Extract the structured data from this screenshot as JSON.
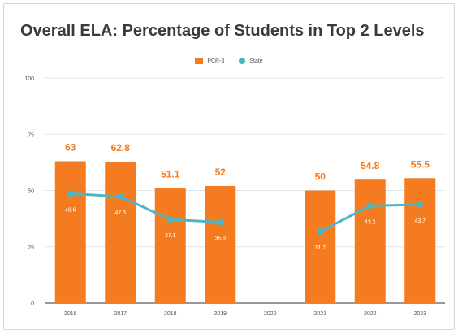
{
  "chart_data": {
    "type": "bar",
    "title": "Overall ELA: Percentage of Students in Top 2 Levels",
    "categories": [
      "2016",
      "2017",
      "2018",
      "2019",
      "2020",
      "2021",
      "2022",
      "2023"
    ],
    "series": [
      {
        "name": "PCR-3",
        "type": "bar",
        "values": [
          63,
          62.8,
          51.1,
          52,
          null,
          50,
          54.8,
          55.5
        ],
        "color": "#f47b20"
      },
      {
        "name": "State",
        "type": "line",
        "values": [
          48.6,
          47.3,
          37.1,
          35.9,
          null,
          31.7,
          43.2,
          43.7
        ],
        "color": "#4db6c4"
      }
    ],
    "bar_labels": [
      "63",
      "62.8",
      "51.1",
      "52",
      "",
      "50",
      "54.8",
      "55.5"
    ],
    "line_labels": [
      "48.6",
      "47.3",
      "37.1",
      "35.9",
      "",
      "31.7",
      "43.2",
      "43.7"
    ],
    "ylim": [
      0,
      100
    ],
    "yticks": [
      "0",
      "25",
      "50",
      "75",
      "100"
    ],
    "grid": true,
    "legend_position": "top-center"
  }
}
